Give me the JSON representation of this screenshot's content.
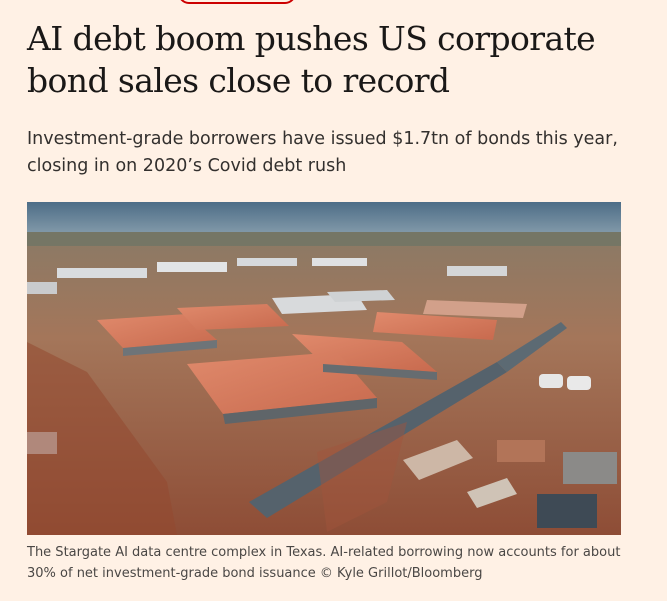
{
  "article": {
    "headline": "AI debt boom pushes US corporate bond sales close to record",
    "standfirst": "Investment-grade borrowers have issued $1.7tn of bonds this year, closing in on 2020’s Covid debt rush",
    "caption": "The Stargate AI data centre complex in Texas. AI-related borrowing now accounts for about 30% of net investment-grade bond issuance © Kyle Grillot/Bloomberg"
  },
  "colors": {
    "page_background": "#fff1e5",
    "headline_text": "#1a1817",
    "body_text": "#33302e",
    "accent_red": "#cc0000"
  },
  "icons": {
    "top_tag": "red-outlined-pill"
  }
}
